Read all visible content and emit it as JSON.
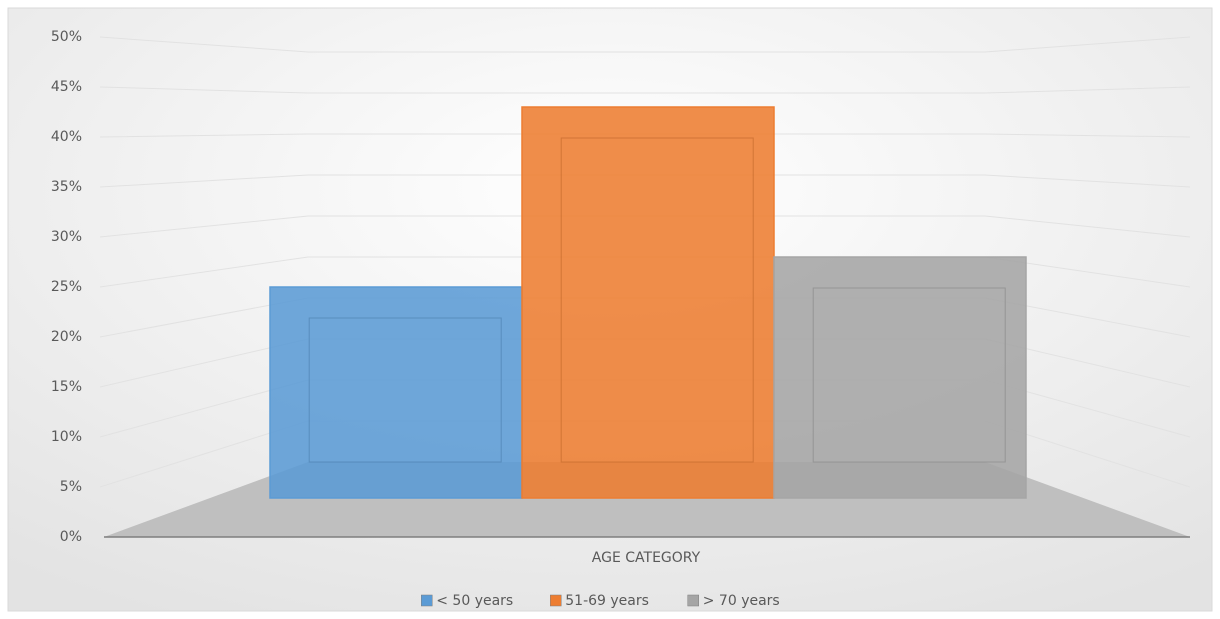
{
  "chart_data": {
    "type": "bar",
    "categories": [
      "AGE CATEGORY"
    ],
    "series": [
      {
        "name": "< 50 years",
        "color": "#5b9bd5",
        "values": [
          25
        ]
      },
      {
        "name": "51-69 years",
        "color": "#ed7d31",
        "values": [
          43
        ]
      },
      {
        "name": "> 70 years",
        "color": "#a5a5a5",
        "values": [
          28
        ]
      }
    ],
    "ylim": [
      0,
      50
    ],
    "yticks": [
      {
        "value": 0,
        "label": "0%"
      },
      {
        "value": 5,
        "label": "5%"
      },
      {
        "value": 10,
        "label": "10%"
      },
      {
        "value": 15,
        "label": "15%"
      },
      {
        "value": 20,
        "label": "20%"
      },
      {
        "value": 25,
        "label": "25%"
      },
      {
        "value": 30,
        "label": "30%"
      },
      {
        "value": 35,
        "label": "35%"
      },
      {
        "value": 40,
        "label": "40%"
      },
      {
        "value": 45,
        "label": "45%"
      },
      {
        "value": 50,
        "label": "50%"
      }
    ],
    "grid": true,
    "legend": "bottom"
  }
}
